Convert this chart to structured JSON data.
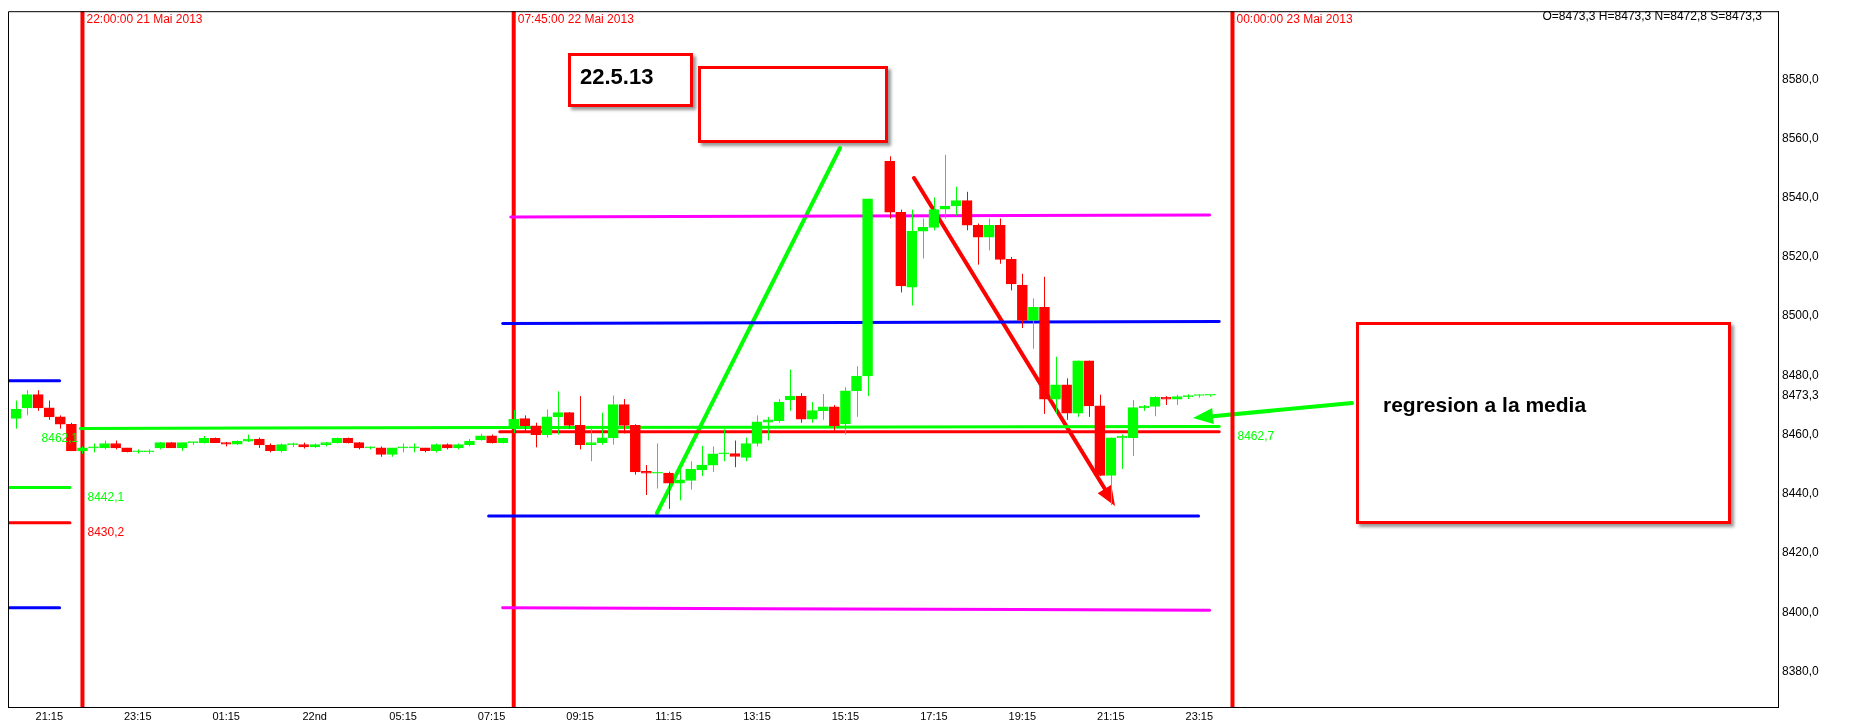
{
  "chart_data": {
    "type": "candlestick",
    "x": [
      "2013-05-21T20:30",
      "2013-05-21T20:45",
      "2013-05-21T21:00",
      "2013-05-21T21:15",
      "2013-05-21T21:30",
      "2013-05-21T21:45",
      "2013-05-21T22:00",
      "2013-05-21T22:15",
      "2013-05-21T22:30",
      "2013-05-21T22:45",
      "2013-05-21T23:00",
      "2013-05-21T23:15",
      "2013-05-21T23:30",
      "2013-05-21T23:45",
      "2013-05-22T00:00",
      "2013-05-22T00:15",
      "2013-05-22T00:30",
      "2013-05-22T00:45",
      "2013-05-22T01:00",
      "2013-05-22T01:15",
      "2013-05-22T01:30",
      "2013-05-22T01:45",
      "2013-05-22T02:00",
      "2013-05-22T02:15",
      "2013-05-22T02:30",
      "2013-05-22T02:45",
      "2013-05-22T03:00",
      "2013-05-22T03:15",
      "2013-05-22T03:30",
      "2013-05-22T03:45",
      "2013-05-22T04:00",
      "2013-05-22T04:15",
      "2013-05-22T04:30",
      "2013-05-22T04:45",
      "2013-05-22T05:00",
      "2013-05-22T05:15",
      "2013-05-22T05:30",
      "2013-05-22T05:45",
      "2013-05-22T06:00",
      "2013-05-22T06:15",
      "2013-05-22T06:30",
      "2013-05-22T06:45",
      "2013-05-22T07:00",
      "2013-05-22T07:15",
      "2013-05-22T07:30",
      "2013-05-22T07:45",
      "2013-05-22T08:00",
      "2013-05-22T08:15",
      "2013-05-22T08:30",
      "2013-05-22T08:45",
      "2013-05-22T09:00",
      "2013-05-22T09:15",
      "2013-05-22T09:30",
      "2013-05-22T09:45",
      "2013-05-22T10:00",
      "2013-05-22T10:15",
      "2013-05-22T10:30",
      "2013-05-22T10:45",
      "2013-05-22T11:00",
      "2013-05-22T11:15",
      "2013-05-22T11:30",
      "2013-05-22T11:45",
      "2013-05-22T12:00",
      "2013-05-22T12:15",
      "2013-05-22T12:30",
      "2013-05-22T12:45",
      "2013-05-22T13:00",
      "2013-05-22T13:15",
      "2013-05-22T13:30",
      "2013-05-22T13:45",
      "2013-05-22T14:00",
      "2013-05-22T14:15",
      "2013-05-22T14:30",
      "2013-05-22T14:45",
      "2013-05-22T15:00",
      "2013-05-22T15:15",
      "2013-05-22T15:30",
      "2013-05-22T15:45",
      "2013-05-22T16:15",
      "2013-05-22T16:30",
      "2013-05-22T16:45",
      "2013-05-22T17:00",
      "2013-05-22T17:15",
      "2013-05-22T17:30",
      "2013-05-22T17:45",
      "2013-05-22T18:00",
      "2013-05-22T18:15",
      "2013-05-22T18:30",
      "2013-05-22T18:45",
      "2013-05-22T19:00",
      "2013-05-22T19:15",
      "2013-05-22T19:30",
      "2013-05-22T19:45",
      "2013-05-22T20:00",
      "2013-05-22T20:15",
      "2013-05-22T20:30",
      "2013-05-22T20:45",
      "2013-05-22T21:00",
      "2013-05-22T21:15",
      "2013-05-22T21:30",
      "2013-05-22T21:45",
      "2013-05-22T22:00",
      "2013-05-22T22:15",
      "2013-05-22T22:30",
      "2013-05-22T22:45",
      "2013-05-22T23:00",
      "2013-05-22T23:15",
      "2013-05-22T23:30"
    ],
    "ohlc": [
      [
        8465.5,
        8471.5,
        8462,
        8468.5
      ],
      [
        8469,
        8475,
        8466.5,
        8473.5
      ],
      [
        8473.5,
        8475,
        8468,
        8469
      ],
      [
        8469,
        8471.5,
        8465,
        8466
      ],
      [
        8466,
        8466.5,
        8462,
        8463.5
      ],
      [
        8463.5,
        8464,
        8454.5,
        8454.5
      ],
      [
        8454.5,
        8456,
        8453.5,
        8455.5
      ],
      [
        8455.5,
        8457,
        8454,
        8455.7
      ],
      [
        8455.5,
        8458,
        8455,
        8457
      ],
      [
        8457,
        8458,
        8455,
        8455.5
      ],
      [
        8455.5,
        8455.5,
        8454,
        8454.2
      ],
      [
        8454.2,
        8455,
        8453.6,
        8454.5
      ],
      [
        8454.2,
        8455,
        8453.5,
        8454.5
      ],
      [
        8455.5,
        8457.5,
        8455,
        8457.3
      ],
      [
        8457.3,
        8457.5,
        8455.5,
        8455.5
      ],
      [
        8455.5,
        8457.3,
        8454.5,
        8457.3
      ],
      [
        8457.3,
        8457.5,
        8456.5,
        8457.3
      ],
      [
        8457.3,
        8459.5,
        8457,
        8458.7
      ],
      [
        8458.7,
        8459,
        8457.3,
        8457.3
      ],
      [
        8457.3,
        8457.5,
        8456,
        8456.8
      ],
      [
        8456.8,
        8458,
        8456.5,
        8457.8
      ],
      [
        8457.8,
        8460,
        8457.5,
        8458.5
      ],
      [
        8458.5,
        8459,
        8455.5,
        8456.5
      ],
      [
        8456.5,
        8457,
        8454,
        8454.6
      ],
      [
        8454.6,
        8457,
        8454,
        8456.6
      ],
      [
        8456.6,
        8457.3,
        8455.8,
        8456.6
      ],
      [
        8456.6,
        8457.3,
        8455.3,
        8455.8
      ],
      [
        8455.8,
        8457,
        8455.5,
        8456.6
      ],
      [
        8456.6,
        8457.5,
        8456,
        8457.3
      ],
      [
        8457.3,
        8459,
        8457,
        8458.7
      ],
      [
        8458.7,
        8459,
        8457,
        8457.3
      ],
      [
        8457.3,
        8457.5,
        8455,
        8455.5
      ],
      [
        8455.5,
        8456,
        8455,
        8455.5
      ],
      [
        8455.5,
        8456,
        8452.5,
        8453.3
      ],
      [
        8453.3,
        8455.5,
        8452.5,
        8455.5
      ],
      [
        8455.5,
        8457,
        8454,
        8455.5
      ],
      [
        8455.5,
        8457,
        8454,
        8455.5
      ],
      [
        8455.5,
        8455.5,
        8454,
        8454.6
      ],
      [
        8454.6,
        8457,
        8454,
        8456.6
      ],
      [
        8456.6,
        8457,
        8455,
        8455.5
      ],
      [
        8455.5,
        8457,
        8455,
        8456.6
      ],
      [
        8456.6,
        8458.5,
        8456,
        8457.8
      ],
      [
        8458.2,
        8460.3,
        8458,
        8459.6
      ],
      [
        8459.6,
        8460,
        8457,
        8457.3
      ],
      [
        8457.3,
        8459,
        8457,
        8458.7
      ],
      [
        8462,
        8468.3,
        8460.5,
        8465.2
      ],
      [
        8465.4,
        8466.5,
        8461,
        8463
      ],
      [
        8463,
        8464,
        8455.7,
        8460
      ],
      [
        8460,
        8468.5,
        8459,
        8466
      ],
      [
        8466,
        8474.6,
        8460,
        8467.4
      ],
      [
        8467.4,
        8467.6,
        8462,
        8463.1
      ],
      [
        8463.1,
        8473,
        8455,
        8456.6
      ],
      [
        8456.6,
        8462,
        8451,
        8457.3
      ],
      [
        8457.3,
        8467.4,
        8456.6,
        8458.9
      ],
      [
        8458.9,
        8473.2,
        8456.6,
        8470.1
      ],
      [
        8470.1,
        8472,
        8460.4,
        8463.1
      ],
      [
        8463.1,
        8463.5,
        8446.5,
        8447.4
      ],
      [
        8447.6,
        8449.7,
        8439.6,
        8447
      ],
      [
        8447,
        8457,
        8441.8,
        8447.2
      ],
      [
        8447,
        8447.5,
        8434.9,
        8443.6
      ],
      [
        8443.6,
        8448,
        8437.8,
        8444.7
      ],
      [
        8444.5,
        8451,
        8441.4,
        8448.3
      ],
      [
        8448.1,
        8456.2,
        8446,
        8449.7
      ],
      [
        8449.7,
        8456,
        8447.4,
        8453.5
      ],
      [
        8453.5,
        8461.8,
        8451,
        8453.6
      ],
      [
        8453.6,
        8458,
        8449,
        8452.6
      ],
      [
        8452.3,
        8459,
        8451,
        8457
      ],
      [
        8457,
        8466.5,
        8456,
        8464.3
      ],
      [
        8464.2,
        8466,
        8458,
        8465
      ],
      [
        8464.7,
        8472,
        8464,
        8471
      ],
      [
        8471.7,
        8482,
        8468,
        8473
      ],
      [
        8473,
        8474,
        8464,
        8465.2
      ],
      [
        8465.2,
        8471,
        8464,
        8468.1
      ],
      [
        8468.1,
        8473.7,
        8465,
        8469.4
      ],
      [
        8469.4,
        8470,
        8461.3,
        8463
      ],
      [
        8463.6,
        8476,
        8460,
        8474.8
      ],
      [
        8474.8,
        8483.1,
        8466,
        8479.8
      ],
      [
        8479.8,
        8539.6,
        8473,
        8539.6
      ],
      [
        8552.3,
        8554,
        8533,
        8535.1
      ],
      [
        8535.1,
        8536,
        8508,
        8510.2
      ],
      [
        8509.8,
        8536,
        8503.6,
        8528.7
      ],
      [
        8528.7,
        8533,
        8519.5,
        8530
      ],
      [
        8530,
        8540.1,
        8529,
        8536
      ],
      [
        8536.1,
        8554.5,
        8533,
        8537.2
      ],
      [
        8537.2,
        8543.7,
        8534,
        8539
      ],
      [
        8539,
        8542,
        8529,
        8530.7
      ],
      [
        8530.7,
        8531.3,
        8517.4,
        8526.7
      ],
      [
        8526.7,
        8533,
        8522.2,
        8530.7
      ],
      [
        8530.7,
        8533,
        8517.7,
        8519.2
      ],
      [
        8519.2,
        8520,
        8508.7,
        8510.9
      ],
      [
        8510.5,
        8514.3,
        8496,
        8498.6
      ],
      [
        8498.6,
        8506,
        8489,
        8503
      ],
      [
        8503,
        8513.3,
        8467,
        8472
      ],
      [
        8472,
        8486.3,
        8467,
        8476.8
      ],
      [
        8476.8,
        8479,
        8465,
        8467.2
      ],
      [
        8467.2,
        8485,
        8466,
        8484.9
      ],
      [
        8484.9,
        8485,
        8466,
        8469.7
      ],
      [
        8469.7,
        8473.5,
        8446,
        8446.2
      ],
      [
        8446.2,
        8459,
        8436.2,
        8458.9
      ],
      [
        8458.9,
        8460,
        8448.4,
        8459.4
      ],
      [
        8459,
        8471.7,
        8452.8,
        8469.1
      ],
      [
        8469.1,
        8470,
        8468,
        8469.6
      ],
      [
        8469.5,
        8473,
        8466.2,
        8472.6
      ],
      [
        8472.6,
        8473,
        8470,
        8472
      ],
      [
        8472,
        8473.5,
        8470,
        8472.8
      ],
      [
        8472.8,
        8473.6,
        8472,
        8473.2
      ],
      [
        8473.2,
        8473.6,
        8472.5,
        8473.3
      ],
      [
        8473.3,
        8473.3,
        8472.8,
        8473.3
      ]
    ],
    "colors": [
      "#00ff00",
      "#00ff00",
      "#ff0000",
      "#ff0000",
      "#ff0000",
      "#ff0000",
      "#00ff00",
      "#00ff00",
      "#00ff00",
      "#ff0000",
      "#ff0000",
      "#00ff00",
      "#00ff00",
      "#00ff00",
      "#ff0000",
      "#00ff00",
      "#00ff00",
      "#00ff00",
      "#ff0000",
      "#ff0000",
      "#00ff00",
      "#00ff00",
      "#ff0000",
      "#ff0000",
      "#00ff00",
      "#00ff00",
      "#ff0000",
      "#00ff00",
      "#00ff00",
      "#00ff00",
      "#ff0000",
      "#ff0000",
      "#00ff00",
      "#ff0000",
      "#00ff00",
      "#00ff00",
      "#00ff00",
      "#ff0000",
      "#00ff00",
      "#ff0000",
      "#00ff00",
      "#00ff00",
      "#00ff00",
      "#ff0000",
      "#00ff00",
      "#00ff00",
      "#ff0000",
      "#ff0000",
      "#00ff00",
      "#00ff00",
      "#ff0000",
      "#ff0000",
      "#00ff00",
      "#00ff00",
      "#00ff00",
      "#ff0000",
      "#ff0000",
      "#ff0000",
      "#00ff00",
      "#ff0000",
      "#00ff00",
      "#00ff00",
      "#00ff00",
      "#00ff00",
      "#00ff00",
      "#ff0000",
      "#00ff00",
      "#00ff00",
      "#00ff00",
      "#00ff00",
      "#00ff00",
      "#ff0000",
      "#00ff00",
      "#00ff00",
      "#ff0000",
      "#00ff00",
      "#00ff00",
      "#00ff00",
      "#ff0000",
      "#ff0000",
      "#00ff00",
      "#00ff00",
      "#00ff00",
      "#00ff00",
      "#00ff00",
      "#ff0000",
      "#ff0000",
      "#00ff00",
      "#ff0000",
      "#ff0000",
      "#ff0000",
      "#00ff00",
      "#ff0000",
      "#00ff00",
      "#ff0000",
      "#00ff00",
      "#ff0000",
      "#ff0000",
      "#00ff00",
      "#00ff00",
      "#00ff00",
      "#00ff00",
      "#00ff00",
      "#ff0000",
      "#00ff00",
      "#00ff00",
      "#00ff00",
      "#00ff00"
    ],
    "series": [
      {
        "type": "line",
        "color": "#0000ff",
        "x": [
          "2013-05-21T20:19",
          "2013-05-21T21:29"
        ],
        "values": [
          8478.2,
          8478.2
        ]
      },
      {
        "type": "line",
        "color": "#00ff00",
        "x": [
          "2013-05-21T20:19",
          "2013-05-21T21:43"
        ],
        "values": [
          8442.1,
          8442.1
        ]
      },
      {
        "type": "line",
        "color": "#ff0000",
        "x": [
          "2013-05-21T20:19",
          "2013-05-21T21:43"
        ],
        "values": [
          8430.2,
          8430.2
        ]
      },
      {
        "type": "line",
        "color": "#0000ff",
        "x": [
          "2013-05-21T20:19",
          "2013-05-21T21:29"
        ],
        "values": [
          8401.5,
          8401.5
        ]
      },
      {
        "type": "line",
        "color": "#00ff00",
        "x": [
          "2013-05-21T21:57",
          "2013-05-22T07:26",
          "2013-05-22T23:42"
        ],
        "values": [
          8462.1,
          8462.4,
          8462.7
        ]
      },
      {
        "type": "line",
        "color": "#ff0000",
        "x": [
          "2013-05-22T07:26",
          "2013-05-22T23:42"
        ],
        "values": [
          8461,
          8461
        ]
      },
      {
        "type": "line",
        "color": "#0000ff",
        "x": [
          "2013-05-22T07:30",
          "2013-05-22T23:42"
        ],
        "values": [
          8497.5,
          8498.2
        ]
      },
      {
        "type": "line",
        "color": "#0000ff",
        "x": [
          "2013-05-22T07:11",
          "2013-05-22T23:14"
        ],
        "values": [
          8432.5,
          8432.5
        ]
      },
      {
        "type": "line",
        "color": "#ff00ff",
        "x": [
          "2013-05-22T07:41",
          "2013-05-22T23:29"
        ],
        "values": [
          8533.5,
          8534.2
        ]
      },
      {
        "type": "line",
        "color": "#ff00ff",
        "x": [
          "2013-05-22T07:30",
          "2013-05-22T23:29"
        ],
        "values": [
          8401.5,
          8400.7
        ]
      }
    ],
    "ref_lines": [
      {
        "axis": "x",
        "value": "2013-05-21T22:00",
        "label": "22:00:00 21 Mai 2013",
        "color": "#ff0000"
      },
      {
        "axis": "x",
        "value": "2013-05-22T07:45",
        "label": "07:45:00 22 Mai 2013",
        "color": "#ff0000"
      },
      {
        "axis": "x",
        "value": "2013-05-23T00:00",
        "label": "00:00:00 23 Mai 2013",
        "color": "#ff0000"
      }
    ],
    "annotations": [
      "22.5.13",
      "regresion a la media",
      "O=8473,3 H=8473,3 N=8472,8 S=8473,3",
      {
        "text": "8462,1",
        "x": "2013-05-21T21:57",
        "y": 8462.1
      },
      {
        "text": "8442,1",
        "x": "2013-05-21T21:43",
        "y": 8442.1
      },
      {
        "text": "8430,2",
        "x": "2013-05-21T21:43",
        "y": 8430.2
      },
      {
        "text": "8462,7",
        "x": "2013-05-22T23:42",
        "y": 8462.7
      }
    ],
    "xlim": [
      "2013-05-21T20:19",
      "2013-05-23T12:20"
    ],
    "ylim": [
      8368,
      8603
    ],
    "xticks": [
      {
        "value": "2013-05-21T21:15",
        "label": "21:15"
      },
      {
        "value": "2013-05-21T23:15",
        "label": "23:15"
      },
      {
        "value": "2013-05-22T01:15",
        "label": "01:15"
      },
      {
        "value": "2013-05-22T03:15",
        "label": "22nd"
      },
      {
        "value": "2013-05-22T05:15",
        "label": "05:15"
      },
      {
        "value": "2013-05-22T07:15",
        "label": "07:15"
      },
      {
        "value": "2013-05-22T09:15",
        "label": "09:15"
      },
      {
        "value": "2013-05-22T11:15",
        "label": "11:15"
      },
      {
        "value": "2013-05-22T13:15",
        "label": "13:15"
      },
      {
        "value": "2013-05-22T15:15",
        "label": "15:15"
      },
      {
        "value": "2013-05-22T17:15",
        "label": "17:15"
      },
      {
        "value": "2013-05-22T19:15",
        "label": "19:15"
      },
      {
        "value": "2013-05-22T21:15",
        "label": "21:15"
      },
      {
        "value": "2013-05-22T23:15",
        "label": "23:15"
      }
    ],
    "yticks": [
      {
        "value": 8380,
        "label": "8380,0"
      },
      {
        "value": 8400,
        "label": "8400,0"
      },
      {
        "value": 8420,
        "label": "8420,0"
      },
      {
        "value": 8440,
        "label": "8440,0"
      },
      {
        "value": 8460,
        "label": "8460,0"
      },
      {
        "value": 8473.3,
        "label": "8473,3"
      },
      {
        "value": 8480,
        "label": "8480,0"
      },
      {
        "value": 8500,
        "label": "8500,0"
      },
      {
        "value": 8520,
        "label": "8520,0"
      },
      {
        "value": 8540,
        "label": "8540,0"
      },
      {
        "value": 8560,
        "label": "8560,0"
      },
      {
        "value": 8580,
        "label": "8580,0"
      }
    ]
  }
}
